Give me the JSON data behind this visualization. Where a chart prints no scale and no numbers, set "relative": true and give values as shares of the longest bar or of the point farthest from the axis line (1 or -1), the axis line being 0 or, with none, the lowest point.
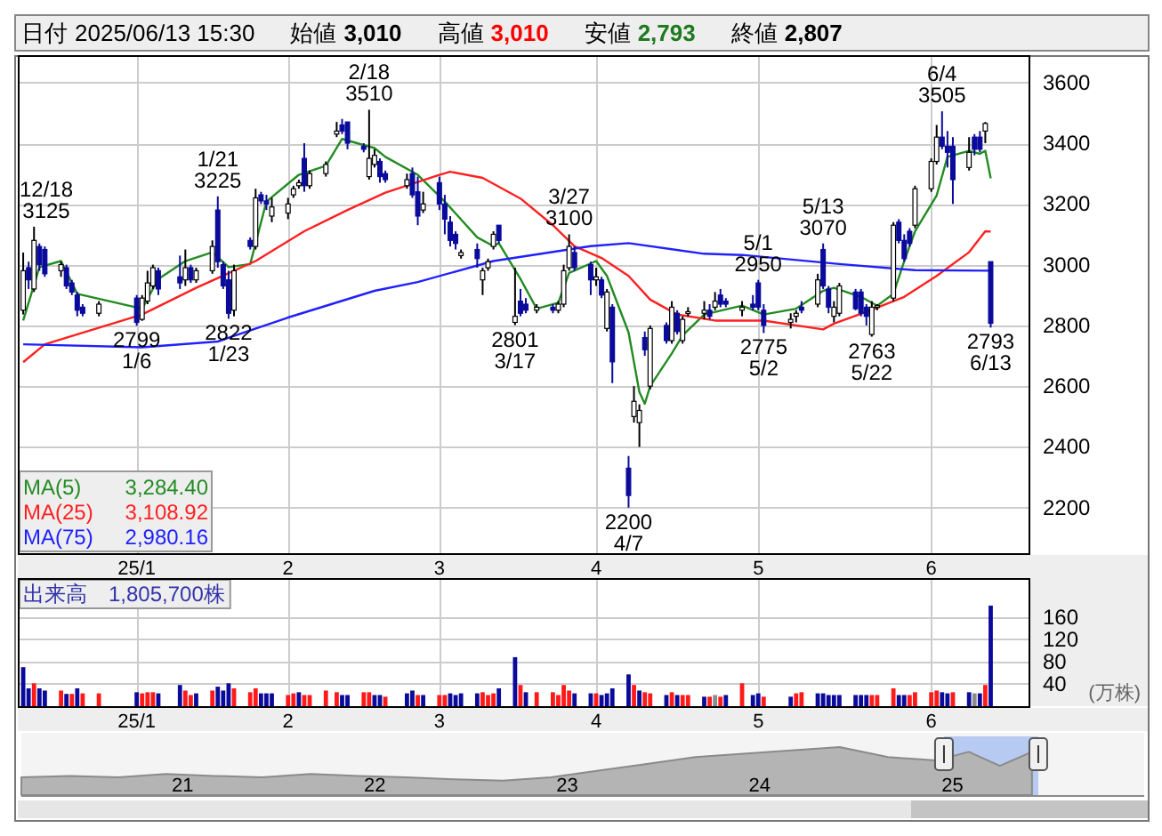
{
  "chart_data": [
    {
      "type": "other",
      "annotations": [
        "日付",
        "2025/06/13 15:30",
        "始値",
        "3,010",
        "高値",
        "3,010",
        "安値",
        "2,793",
        "終値",
        "2,807"
      ],
      "colors": [
        "#000000",
        "#000000",
        "#000000",
        "#000000",
        "#000000",
        "#ff0000",
        "#000000",
        "#1e7a1e",
        "#000000",
        "#000000"
      ]
    },
    {
      "type": "candlestick",
      "grid": true,
      "legend": "bottom left",
      "colors": [
        "#ffffff",
        "#0a0a9b",
        "#ffffff",
        "#0a0a9b",
        "#0a0a9b",
        "#ffffff",
        "#0a0a9b",
        "#0a0a9b",
        "#0a0a9b",
        "#0a0a9b",
        "#ffffff",
        "#0a0a9b",
        "#ffffff",
        "#ffffff",
        "#ffffff",
        "#0a0a9b",
        "#0a0a9b",
        "#ffffff",
        "#0a0a9b",
        "#ffffff",
        "#ffffff",
        "#0a0a9b",
        "#0a0a9b",
        "#0a0a9b",
        "#ffffff",
        "#0a0a9b",
        "#ffffff",
        "#0a0a9b",
        "#0a0a9b",
        "#ffffff",
        "#ffffff",
        "#ffffff",
        "#ffffff",
        "#0a0a9b",
        "#ffffff",
        "#ffffff",
        "#ffffff",
        "#0a0a9b",
        "#0a0a9b",
        "#0a0a9b",
        "#ffffff",
        "#ffffff",
        "#0a0a9b",
        "#0a0a9b",
        "#ffffff",
        "#0a0a9b",
        "#0a0a9b",
        "#ffffff",
        "#0a0a9b",
        "#0a0a9b",
        "#0a0a9b",
        "#0a0a9b",
        "#ffffff",
        "#0a0a9b",
        "#ffffff",
        "#ffffff",
        "#ffffff",
        "#0a0a9b",
        "#ffffff",
        "#0a0a9b",
        "#0a0a9b",
        "#ffffff",
        "#0a0a9b",
        "#ffffff",
        "#ffffff",
        "#ffffff",
        "#0a0a9b",
        "#0a0a9b",
        "#ffffff",
        "#0a0a9b",
        "#ffffff",
        "#0a0a9b",
        "#0a0a9b",
        "#ffffff",
        "#ffffff",
        "#0a0a9b",
        "#ffffff",
        "#0a0a9b",
        "#ffffff",
        "#0a0a9b",
        "#ffffff",
        "#ffffff",
        "#ffffff",
        "#0a0a9b",
        "#ffffff",
        "#0a0a9b",
        "#0a0a9b",
        "#ffffff",
        "#0a0a9b",
        "#0a0a9b",
        "#0a0a9b",
        "#ffffff",
        "#ffffff",
        "#0a0a9b",
        "#ffffff",
        "#0a0a9b",
        "#0a0a9b",
        "#ffffff",
        "#ffffff",
        "#0a0a9b",
        "#0a0a9b",
        "#0a0a9b",
        "#ffffff",
        "#ffffff",
        "#ffffff",
        "#0a0a9b",
        "#0a0a9b",
        "#0a0a9b",
        "#ffffff",
        "#ffffff",
        "#ffffff",
        "#0a0a9b",
        "#0a0a9b",
        "#0a0a9b",
        "#ffffff",
        "#0a0a9b",
        "#0a0a9b",
        "#ffffff",
        "#0a0a9b"
      ],
      "x": [
        "2024-12-16",
        "2024-12-17",
        "2024-12-18",
        "2024-12-19",
        "2024-12-20",
        "2024-12-23",
        "2024-12-24",
        "2024-12-25",
        "2024-12-26",
        "2024-12-27",
        "2024-12-30",
        "2025-01-06",
        "2025-01-07",
        "2025-01-08",
        "2025-01-09",
        "2025-01-10",
        "2025-01-14",
        "2025-01-15",
        "2025-01-16",
        "2025-01-17",
        "2025-01-20",
        "2025-01-21",
        "2025-01-22",
        "2025-01-23",
        "2025-01-24",
        "2025-01-27",
        "2025-01-28",
        "2025-01-29",
        "2025-01-30",
        "2025-01-31",
        "2025-02-03",
        "2025-02-04",
        "2025-02-05",
        "2025-02-06",
        "2025-02-07",
        "2025-02-10",
        "2025-02-12",
        "2025-02-13",
        "2025-02-14",
        "2025-02-17",
        "2025-02-18",
        "2025-02-19",
        "2025-02-20",
        "2025-02-21",
        "2025-02-25",
        "2025-02-26",
        "2025-02-27",
        "2025-02-28",
        "2025-03-03",
        "2025-03-04",
        "2025-03-05",
        "2025-03-06",
        "2025-03-07",
        "2025-03-10",
        "2025-03-11",
        "2025-03-12",
        "2025-03-13",
        "2025-03-14",
        "2025-03-17",
        "2025-03-18",
        "2025-03-19",
        "2025-03-21",
        "2025-03-24",
        "2025-03-25",
        "2025-03-26",
        "2025-03-27",
        "2025-03-28",
        "2025-03-31",
        "2025-04-01",
        "2025-04-02",
        "2025-04-03",
        "2025-04-04",
        "2025-04-07",
        "2025-04-08",
        "2025-04-09",
        "2025-04-10",
        "2025-04-11",
        "2025-04-14",
        "2025-04-15",
        "2025-04-16",
        "2025-04-17",
        "2025-04-18",
        "2025-04-21",
        "2025-04-22",
        "2025-04-23",
        "2025-04-24",
        "2025-04-25",
        "2025-04-28",
        "2025-04-30",
        "2025-05-01",
        "2025-05-02",
        "2025-05-07",
        "2025-05-08",
        "2025-05-09",
        "2025-05-12",
        "2025-05-13",
        "2025-05-14",
        "2025-05-15",
        "2025-05-16",
        "2025-05-19",
        "2025-05-20",
        "2025-05-21",
        "2025-05-22",
        "2025-05-23",
        "2025-05-26",
        "2025-05-27",
        "2025-05-28",
        "2025-05-29",
        "2025-05-30",
        "2025-06-02",
        "2025-06-03",
        "2025-06-04",
        "2025-06-05",
        "2025-06-06",
        "2025-06-09",
        "2025-06-10",
        "2025-06-11",
        "2025-06-12",
        "2025-06-13"
      ],
      "ohlc": [
        [
          2850,
          3040,
          2836,
          2980
        ],
        [
          2990,
          3010,
          2920,
          2950
        ],
        [
          2920,
          3125,
          2910,
          3080
        ],
        [
          3060,
          3070,
          2980,
          3000
        ],
        [
          3050,
          3060,
          2960,
          2970
        ],
        [
          2980,
          3010,
          2960,
          3000
        ],
        [
          2990,
          3000,
          2920,
          2930
        ],
        [
          2940,
          2950,
          2900,
          2910
        ],
        [
          2900,
          2910,
          2830,
          2850
        ],
        [
          2860,
          2870,
          2830,
          2840
        ],
        [
          2840,
          2880,
          2830,
          2870
        ],
        [
          2890,
          2900,
          2799,
          2810
        ],
        [
          2820,
          2900,
          2815,
          2890
        ],
        [
          2880,
          2980,
          2870,
          2940
        ],
        [
          2930,
          3000,
          2920,
          2990
        ],
        [
          2980,
          2990,
          2900,
          2920
        ],
        [
          2960,
          3030,
          2920,
          2940
        ],
        [
          2950,
          3050,
          2930,
          2990
        ],
        [
          2990,
          3000,
          2940,
          2950
        ],
        [
          2950,
          2990,
          2940,
          2980
        ],
        [
          2980,
          3080,
          2970,
          3060
        ],
        [
          3180,
          3225,
          2990,
          3010
        ],
        [
          3000,
          3010,
          2920,
          2930
        ],
        [
          2950,
          2980,
          2822,
          2840
        ],
        [
          2850,
          3000,
          2830,
          2980
        ],
        [
          3080,
          3090,
          3050,
          3060
        ],
        [
          3060,
          3250,
          3050,
          3220
        ],
        [
          3230,
          3240,
          3200,
          3210
        ],
        [
          3210,
          3230,
          3180,
          3200
        ],
        [
          3160,
          3220,
          3140,
          3190
        ],
        [
          3170,
          3220,
          3150,
          3200
        ],
        [
          3230,
          3260,
          3220,
          3250
        ],
        [
          3260,
          3280,
          3250,
          3270
        ],
        [
          3350,
          3400,
          3240,
          3260
        ],
        [
          3260,
          3310,
          3250,
          3300
        ],
        [
          3300,
          3340,
          3290,
          3330
        ],
        [
          3430,
          3470,
          3420,
          3440
        ],
        [
          3460,
          3480,
          3430,
          3440
        ],
        [
          3470,
          3470,
          3380,
          3400
        ],
        [
          3390,
          3400,
          3370,
          3380
        ],
        [
          3290,
          3510,
          3280,
          3350
        ],
        [
          3330,
          3380,
          3320,
          3360
        ],
        [
          3340,
          3350,
          3270,
          3290
        ],
        [
          3300,
          3310,
          3270,
          3280
        ],
        [
          3260,
          3300,
          3250,
          3280
        ],
        [
          3300,
          3320,
          3220,
          3230
        ],
        [
          3240,
          3290,
          3130,
          3160
        ],
        [
          3180,
          3240,
          3170,
          3200
        ],
        [
          3270,
          3290,
          3180,
          3200
        ],
        [
          3200,
          3230,
          3100,
          3150
        ],
        [
          3140,
          3160,
          3060,
          3080
        ],
        [
          3100,
          3110,
          3050,
          3070
        ],
        [
          3030,
          3050,
          3020,
          3040
        ],
        [
          3050,
          3070,
          2990,
          3020
        ],
        [
          2950,
          2990,
          2900,
          2980
        ],
        [
          2990,
          3020,
          2980,
          3010
        ],
        [
          3060,
          3110,
          3050,
          3100
        ],
        [
          3130,
          3130,
          3070,
          3080
        ],
        [
          2810,
          2990,
          2801,
          2830
        ],
        [
          2880,
          2920,
          2830,
          2840
        ],
        [
          2870,
          2890,
          2840,
          2850
        ],
        [
          2850,
          2870,
          2840,
          2860
        ],
        [
          2860,
          2870,
          2840,
          2850
        ],
        [
          2850,
          2880,
          2840,
          2870
        ],
        [
          2870,
          3000,
          2860,
          2980
        ],
        [
          2990,
          3100,
          2980,
          3060
        ],
        [
          3040,
          3060,
          2980,
          2990
        ],
        [
          3000,
          3010,
          2900,
          2950
        ],
        [
          2950,
          2990,
          2930,
          2960
        ],
        [
          2950,
          2960,
          2890,
          2900
        ],
        [
          2790,
          2920,
          2780,
          2910
        ],
        [
          2860,
          2870,
          2610,
          2680
        ],
        [
          2330,
          2370,
          2200,
          2240
        ],
        [
          2500,
          2600,
          2480,
          2550
        ],
        [
          2480,
          2540,
          2400,
          2520
        ],
        [
          2760,
          2780,
          2700,
          2720
        ],
        [
          2600,
          2800,
          2590,
          2790
        ],
        [
          2800,
          2810,
          2740,
          2750
        ],
        [
          2750,
          2880,
          2740,
          2860
        ],
        [
          2840,
          2850,
          2770,
          2780
        ],
        [
          2750,
          2830,
          2740,
          2820
        ],
        [
          2840,
          2860,
          2830,
          2845
        ],
        [
          2840,
          2880,
          2820,
          2850
        ],
        [
          2850,
          2870,
          2820,
          2830
        ],
        [
          2860,
          2910,
          2850,
          2880
        ],
        [
          2900,
          2920,
          2860,
          2870
        ],
        [
          2880,
          2890,
          2860,
          2870
        ],
        [
          2850,
          2880,
          2830,
          2860
        ],
        [
          2870,
          2900,
          2850,
          2860
        ],
        [
          2940,
          2950,
          2850,
          2860
        ],
        [
          2850,
          2870,
          2775,
          2800
        ],
        [
          2810,
          2840,
          2790,
          2820
        ],
        [
          2830,
          2850,
          2810,
          2840
        ],
        [
          2860,
          2880,
          2840,
          2850
        ],
        [
          2870,
          2970,
          2860,
          2950
        ],
        [
          3050,
          3070,
          2920,
          2930
        ],
        [
          2920,
          2930,
          2840,
          2860
        ],
        [
          2830,
          2880,
          2810,
          2860
        ],
        [
          2840,
          2940,
          2830,
          2930
        ],
        [
          2910,
          2920,
          2850,
          2855
        ],
        [
          2910,
          2920,
          2830,
          2840
        ],
        [
          2860,
          2870,
          2800,
          2830
        ],
        [
          2770,
          2880,
          2763,
          2860
        ],
        [
          2860,
          2870,
          2850,
          2865
        ],
        [
          2890,
          3140,
          2880,
          3130
        ],
        [
          3140,
          3150,
          3070,
          3080
        ],
        [
          3080,
          3100,
          3010,
          3020
        ],
        [
          3110,
          3120,
          3060,
          3070
        ],
        [
          3130,
          3260,
          3120,
          3250
        ],
        [
          3250,
          3350,
          3240,
          3340
        ],
        [
          3340,
          3460,
          3330,
          3420
        ],
        [
          3420,
          3505,
          3380,
          3390
        ],
        [
          3390,
          3440,
          3320,
          3370
        ],
        [
          3390,
          3420,
          3200,
          3280
        ],
        [
          3320,
          3420,
          3310,
          3370
        ],
        [
          3420,
          3430,
          3360,
          3380
        ],
        [
          3420,
          3440,
          3370,
          3380
        ],
        [
          3440,
          3470,
          3400,
          3465
        ],
        [
          3010,
          3010,
          2793,
          2807
        ]
      ],
      "series": [
        {
          "name": "MA(5)",
          "type": "line",
          "color": "#228b22",
          "x": [
            "2024-12-16",
            "2024-12-19",
            "2024-12-23",
            "2024-12-26",
            "2025-01-07",
            "2025-01-10",
            "2025-01-15",
            "2025-01-20",
            "2025-01-23",
            "2025-01-27",
            "2025-01-30",
            "2025-02-05",
            "2025-02-10",
            "2025-02-13",
            "2025-02-19",
            "2025-02-21",
            "2025-02-27",
            "2025-03-04",
            "2025-03-10",
            "2025-03-13",
            "2025-03-14",
            "2025-03-18",
            "2025-03-21",
            "2025-03-25",
            "2025-03-27",
            "2025-04-01",
            "2025-04-03",
            "2025-04-07",
            "2025-04-09",
            "2025-04-10",
            "2025-04-11",
            "2025-04-15",
            "2025-04-17",
            "2025-04-21",
            "2025-04-28",
            "2025-05-02",
            "2025-05-08",
            "2025-05-13",
            "2025-05-15",
            "2025-05-20",
            "2025-05-23",
            "2025-05-26",
            "2025-05-28",
            "2025-05-30",
            "2025-06-03",
            "2025-06-05",
            "2025-06-09",
            "2025-06-11",
            "2025-06-12",
            "2025-06-13"
          ],
          "values": [
            2816,
            2992,
            3012,
            2904,
            2855,
            2953,
            3012,
            3041,
            2992,
            3002,
            3208,
            3296,
            3326,
            3414,
            3384,
            3355,
            3296,
            3208,
            3090,
            3061,
            3071,
            2953,
            2855,
            2875,
            2973,
            3012,
            2963,
            2777,
            2581,
            2542,
            2600,
            2708,
            2767,
            2836,
            2865,
            2836,
            2855,
            2914,
            2924,
            2894,
            2865,
            2904,
            3012,
            3110,
            3228,
            3355,
            3375,
            3365,
            3375,
            3284.4
          ]
        },
        {
          "name": "MA(25)",
          "type": "line",
          "color": "#ff2020",
          "x": [
            "2024-12-16",
            "2024-12-20",
            "2025-01-07",
            "2025-01-17",
            "2025-01-28",
            "2025-02-06",
            "2025-02-14",
            "2025-02-21",
            "2025-03-03",
            "2025-03-05",
            "2025-03-11",
            "2025-03-18",
            "2025-03-24",
            "2025-03-28",
            "2025-04-02",
            "2025-04-07",
            "2025-04-11",
            "2025-04-16",
            "2025-04-23",
            "2025-05-02",
            "2025-05-13",
            "2025-05-15",
            "2025-05-21",
            "2025-05-28",
            "2025-06-03",
            "2025-06-09",
            "2025-06-12",
            "2025-06-13"
          ],
          "values": [
            2679,
            2738,
            2836,
            2924,
            3012,
            3110,
            3180,
            3237,
            3296,
            3306,
            3286,
            3218,
            3130,
            3061,
            3022,
            2963,
            2885,
            2836,
            2816,
            2816,
            2787,
            2806,
            2845,
            2894,
            2963,
            3041,
            3110,
            3108.92
          ]
        },
        {
          "name": "MA(75)",
          "type": "line",
          "color": "#2020ff",
          "x": [
            "2024-12-16",
            "2025-01-07",
            "2025-01-21",
            "2025-02-03",
            "2025-02-19",
            "2025-02-27",
            "2025-03-13",
            "2025-03-31",
            "2025-04-07",
            "2025-04-21",
            "2025-04-28",
            "2025-05-16",
            "2025-05-30",
            "2025-06-13"
          ],
          "values": [
            2738,
            2728,
            2747,
            2826,
            2914,
            2943,
            3012,
            3061,
            3071,
            3036,
            3032,
            3002,
            2982,
            2980.16
          ]
        }
      ],
      "xlim": [
        "2024-12-15",
        "2025-06-20"
      ],
      "xticks": [
        {
          "value": "2025-01-06",
          "label": "25/1"
        },
        {
          "value": "2025-02-03",
          "label": "2"
        },
        {
          "value": "2025-03-03",
          "label": "3"
        },
        {
          "value": "2025-04-01",
          "label": "4"
        },
        {
          "value": "2025-05-01",
          "label": "5"
        },
        {
          "value": "2025-06-02",
          "label": "6"
        }
      ],
      "ylim": [
        2050,
        3690
      ],
      "yticks": [
        2200,
        2400,
        2600,
        2800,
        3000,
        3200,
        3400,
        3600
      ],
      "annotations": [
        {
          "text": "12/18\n3125",
          "x": "2024-12-18",
          "y": 3125
        },
        {
          "text": "2799\n1/6",
          "x": "2025-01-06",
          "y": 2799
        },
        {
          "text": "1/21\n3225",
          "x": "2025-01-21",
          "y": 3225
        },
        {
          "text": "2822\n1/23",
          "x": "2025-01-23",
          "y": 2822
        },
        {
          "text": "2/18\n3510",
          "x": "2025-02-18",
          "y": 3510
        },
        {
          "text": "2801\n3/17",
          "x": "2025-03-17",
          "y": 2801
        },
        {
          "text": "3/27\n3100",
          "x": "2025-03-27",
          "y": 3100
        },
        {
          "text": "2200\n4/7",
          "x": "2025-04-07",
          "y": 2200
        },
        {
          "text": "5/1\n2950",
          "x": "2025-05-01",
          "y": 2950
        },
        {
          "text": "2775\n5/2",
          "x": "2025-05-02",
          "y": 2775
        },
        {
          "text": "5/13\n3070",
          "x": "2025-05-13",
          "y": 3070
        },
        {
          "text": "2763\n5/22",
          "x": "2025-05-22",
          "y": 2763
        },
        {
          "text": "6/4\n3505",
          "x": "2025-06-04",
          "y": 3505
        },
        {
          "text": "2793\n6/13",
          "x": "2025-06-13",
          "y": 2793
        },
        "3,284.40",
        "3,108.92",
        "2,980.16"
      ]
    },
    {
      "type": "bar",
      "grid": true,
      "ylabel": "(万株)",
      "annotations": [
        "出来高　1,805,700株"
      ],
      "x": [
        "2024-12-16",
        "2024-12-17",
        "2024-12-18",
        "2024-12-19",
        "2024-12-20",
        "2024-12-23",
        "2024-12-24",
        "2024-12-25",
        "2024-12-26",
        "2024-12-27",
        "2024-12-30",
        "2025-01-06",
        "2025-01-07",
        "2025-01-08",
        "2025-01-09",
        "2025-01-10",
        "2025-01-14",
        "2025-01-15",
        "2025-01-16",
        "2025-01-17",
        "2025-01-20",
        "2025-01-21",
        "2025-01-22",
        "2025-01-23",
        "2025-01-24",
        "2025-01-27",
        "2025-01-28",
        "2025-01-29",
        "2025-01-30",
        "2025-01-31",
        "2025-02-03",
        "2025-02-04",
        "2025-02-05",
        "2025-02-06",
        "2025-02-07",
        "2025-02-10",
        "2025-02-12",
        "2025-02-13",
        "2025-02-14",
        "2025-02-17",
        "2025-02-18",
        "2025-02-19",
        "2025-02-20",
        "2025-02-21",
        "2025-02-25",
        "2025-02-26",
        "2025-02-27",
        "2025-02-28",
        "2025-03-03",
        "2025-03-04",
        "2025-03-05",
        "2025-03-06",
        "2025-03-07",
        "2025-03-10",
        "2025-03-11",
        "2025-03-12",
        "2025-03-13",
        "2025-03-14",
        "2025-03-17",
        "2025-03-18",
        "2025-03-19",
        "2025-03-21",
        "2025-03-24",
        "2025-03-25",
        "2025-03-26",
        "2025-03-27",
        "2025-03-28",
        "2025-03-31",
        "2025-04-01",
        "2025-04-02",
        "2025-04-03",
        "2025-04-04",
        "2025-04-07",
        "2025-04-08",
        "2025-04-09",
        "2025-04-10",
        "2025-04-11",
        "2025-04-14",
        "2025-04-15",
        "2025-04-16",
        "2025-04-17",
        "2025-04-18",
        "2025-04-21",
        "2025-04-22",
        "2025-04-23",
        "2025-04-24",
        "2025-04-25",
        "2025-04-28",
        "2025-04-30",
        "2025-05-01",
        "2025-05-02",
        "2025-05-07",
        "2025-05-08",
        "2025-05-09",
        "2025-05-12",
        "2025-05-13",
        "2025-05-14",
        "2025-05-15",
        "2025-05-16",
        "2025-05-19",
        "2025-05-20",
        "2025-05-21",
        "2025-05-22",
        "2025-05-23",
        "2025-05-26",
        "2025-05-27",
        "2025-05-28",
        "2025-05-29",
        "2025-05-30",
        "2025-06-02",
        "2025-06-03",
        "2025-06-04",
        "2025-06-05",
        "2025-06-06",
        "2025-06-09",
        "2025-06-10",
        "2025-06-11",
        "2025-06-12",
        "2025-06-13"
      ],
      "values": [
        70,
        32,
        41,
        32,
        28,
        28,
        22,
        22,
        32,
        23,
        23,
        25,
        23,
        25,
        25,
        23,
        38,
        28,
        20,
        23,
        28,
        35,
        28,
        41,
        32,
        25,
        32,
        23,
        23,
        23,
        20,
        23,
        25,
        20,
        20,
        28,
        25,
        20,
        20,
        25,
        25,
        20,
        20,
        17,
        23,
        28,
        20,
        20,
        20,
        20,
        23,
        20,
        23,
        23,
        25,
        20,
        23,
        32,
        88,
        38,
        25,
        25,
        25,
        20,
        38,
        28,
        23,
        23,
        23,
        20,
        23,
        32,
        57,
        38,
        28,
        25,
        23,
        20,
        25,
        20,
        20,
        20,
        17,
        17,
        20,
        17,
        20,
        41,
        20,
        23,
        17,
        17,
        23,
        25,
        23,
        23,
        20,
        20,
        20,
        20,
        20,
        20,
        20,
        20,
        32,
        20,
        20,
        20,
        25,
        25,
        28,
        25,
        23,
        25,
        25,
        23,
        23,
        38,
        180.57
      ],
      "colors": [
        "#0a0a9b",
        "#0a0a9b",
        "#ff1a1a",
        "#0a0a9b",
        "#0a0a9b",
        "#ff1a1a",
        "#0a0a9b",
        "#ff1a1a",
        "#0a0a9b",
        "#ff1a1a",
        "#ff1a1a",
        "#0a0a9b",
        "#ff1a1a",
        "#ff1a1a",
        "#ff1a1a",
        "#0a0a9b",
        "#0a0a9b",
        "#ff1a1a",
        "#ff1a1a",
        "#0a0a9b",
        "#ff1a1a",
        "#0a0a9b",
        "#0a0a9b",
        "#0a0a9b",
        "#ff1a1a",
        "#ff1a1a",
        "#ff1a1a",
        "#0a0a9b",
        "#0a0a9b",
        "#0a0a9b",
        "#ff1a1a",
        "#ff1a1a",
        "#0a0a9b",
        "#ff1a1a",
        "#ff1a1a",
        "#ff1a1a",
        "#ff1a1a",
        "#0a0a9b",
        "#0a0a9b",
        "#ff1a1a",
        "#ff1a1a",
        "#0a0a9b",
        "#0a0a9b",
        "#ff1a1a",
        "#0a0a9b",
        "#0a0a9b",
        "#ff1a1a",
        "#0a0a9b",
        "#ff1a1a",
        "#ff1a1a",
        "#0a0a9b",
        "#0a0a9b",
        "#0a0a9b",
        "#0a0a9b",
        "#ff1a1a",
        "#ff1a1a",
        "#ff1a1a",
        "#0a0a9b",
        "#0a0a9b",
        "#ff1a1a",
        "#0a0a9b",
        "#ff1a1a",
        "#ff1a1a",
        "#ff1a1a",
        "#ff1a1a",
        "#ff1a1a",
        "#0a0a9b",
        "#0a0a9b",
        "#ff1a1a",
        "#0a0a9b",
        "#0a0a9b",
        "#0a0a9b",
        "#0a0a9b",
        "#ff1a1a",
        "#0a0a9b",
        "#ff1a1a",
        "#ff1a1a",
        "#0a0a9b",
        "#ff1a1a",
        "#0a0a9b",
        "#ff1a1a",
        "#ff1a1a",
        "#0a0a9b",
        "#ff1a1a",
        "#8c8c8c",
        "#ff1a1a",
        "#0a0a9b",
        "#ff1a1a",
        "#0a0a9b",
        "#0a0a9b",
        "#ff1a1a",
        "#0a0a9b",
        "#ff1a1a",
        "#ff1a1a",
        "#0a0a9b",
        "#0a0a9b",
        "#0a0a9b",
        "#0a0a9b",
        "#0a0a9b",
        "#0a0a9b",
        "#0a0a9b",
        "#0a0a9b",
        "#ff1a1a",
        "#ff1a1a",
        "#ff1a1a",
        "#0a0a9b",
        "#0a0a9b",
        "#ff1a1a",
        "#ff1a1a",
        "#ff1a1a",
        "#ff1a1a",
        "#0a0a9b",
        "#0a0a9b",
        "#ff1a1a",
        "#0a0a9b",
        "#8c8c8c",
        "#0a0a9b",
        "#ff1a1a",
        "#0a0a9b"
      ],
      "xlim": [
        "2024-12-15",
        "2025-06-20"
      ],
      "xticks": [
        {
          "value": "2025-01-06",
          "label": "25/1"
        },
        {
          "value": "2025-02-03",
          "label": "2"
        },
        {
          "value": "2025-03-03",
          "label": "3"
        },
        {
          "value": "2025-04-01",
          "label": "4"
        },
        {
          "value": "2025-05-01",
          "label": "5"
        },
        {
          "value": "2025-06-02",
          "label": "6"
        }
      ],
      "ylim": [
        0,
        230
      ],
      "yticks": [
        40,
        80,
        120,
        160
      ]
    },
    {
      "type": "area",
      "relative": true,
      "color": "#b4b4b4",
      "x": [
        "2020-03",
        "2020-06",
        "2020-09",
        "2020-12",
        "2021-03",
        "2021-06",
        "2021-09",
        "2021-12",
        "2022-03",
        "2022-06",
        "2022-09",
        "2022-12",
        "2023-03",
        "2023-06",
        "2023-09",
        "2023-12",
        "2024-03",
        "2024-06",
        "2024-09",
        "2024-12",
        "2025-02",
        "2025-04",
        "2025-06"
      ],
      "values": [
        0.37,
        0.4,
        0.37,
        0.44,
        0.4,
        0.37,
        0.44,
        0.4,
        0.37,
        0.33,
        0.3,
        0.37,
        0.51,
        0.65,
        0.79,
        0.86,
        0.93,
        1,
        0.79,
        0.72,
        0.9,
        0.61,
        0.9
      ],
      "xlim": [
        "2020-03",
        "2025-12-31"
      ],
      "xticks": [
        {
          "value": "2021-01",
          "label": "21"
        },
        {
          "value": "2022-01",
          "label": "22"
        },
        {
          "value": "2023-01",
          "label": "23"
        },
        {
          "value": "2024-01",
          "label": "24"
        },
        {
          "value": "2025-01",
          "label": "25"
        }
      ],
      "bands": [
        {
          "axis": "x",
          "from": "2024-12-16",
          "to": "2025-06-13",
          "color": "#a8bff0"
        }
      ]
    }
  ]
}
